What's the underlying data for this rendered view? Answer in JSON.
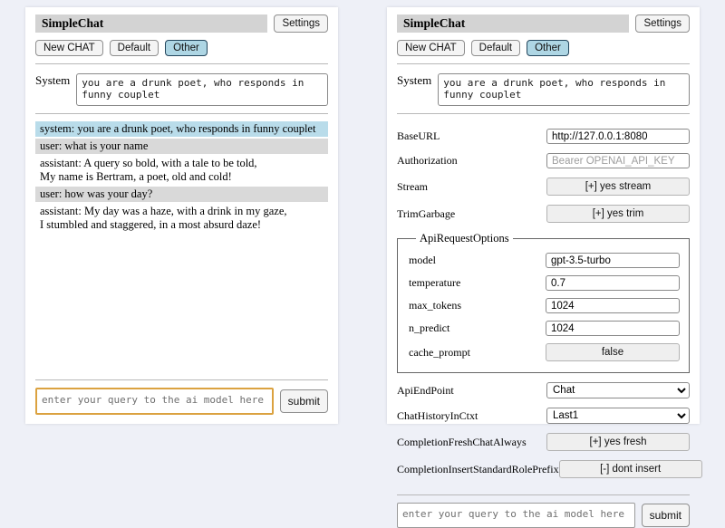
{
  "left": {
    "title": "SimpleChat",
    "settings_button": "Settings",
    "toolbar": {
      "new_chat": "New CHAT",
      "default_session": "Default",
      "other_session": "Other"
    },
    "system": {
      "label": "System",
      "value": "you are a drunk poet, who responds in funny couplet"
    },
    "messages": [
      {
        "role": "system",
        "text": "system: you are a drunk poet, who responds in funny couplet"
      },
      {
        "role": "user",
        "text": "user: what is your name"
      },
      {
        "role": "assistant",
        "text": "assistant: A query so bold, with a tale to be told,\nMy name is Bertram, a poet, old and cold!"
      },
      {
        "role": "user",
        "text": "user: how was your day?"
      },
      {
        "role": "assistant",
        "text": "assistant: My day was a haze, with a drink in my gaze,\nI stumbled and staggered, in a most absurd daze!"
      }
    ],
    "query": {
      "placeholder": "enter your query to the ai model here",
      "submit_label": "submit"
    }
  },
  "right": {
    "title": "SimpleChat",
    "settings_button": "Settings",
    "toolbar": {
      "new_chat": "New CHAT",
      "default_session": "Default",
      "other_session": "Other"
    },
    "system": {
      "label": "System",
      "value": "you are a drunk poet, who responds in funny couplet"
    },
    "settings": {
      "baseurl": {
        "label": "BaseURL",
        "value": "http://127.0.0.1:8080"
      },
      "authorization": {
        "label": "Authorization",
        "placeholder": "Bearer OPENAI_API_KEY"
      },
      "stream": {
        "label": "Stream",
        "button": "[+] yes stream"
      },
      "trimgarbage": {
        "label": "TrimGarbage",
        "button": "[+] yes trim"
      },
      "api_request_options": {
        "legend": "ApiRequestOptions",
        "model": {
          "label": "model",
          "value": "gpt-3.5-turbo"
        },
        "temperature": {
          "label": "temperature",
          "value": "0.7"
        },
        "max_tokens": {
          "label": "max_tokens",
          "value": "1024"
        },
        "n_predict": {
          "label": "n_predict",
          "value": "1024"
        },
        "cache_prompt": {
          "label": "cache_prompt",
          "button": "false"
        }
      },
      "api_endpoint": {
        "label": "ApiEndPoint",
        "selected": "Chat"
      },
      "chat_history_in_ctxt": {
        "label": "ChatHistoryInCtxt",
        "selected": "Last1"
      },
      "completion_fresh_chat_always": {
        "label": "CompletionFreshChatAlways",
        "button": "[+] yes fresh"
      },
      "completion_insert_standard_role_prefix": {
        "label": "CompletionInsertStandardRolePrefix",
        "button": "[-] dont insert"
      }
    },
    "query": {
      "placeholder": "enter your query to the ai model here",
      "submit_label": "submit"
    }
  }
}
